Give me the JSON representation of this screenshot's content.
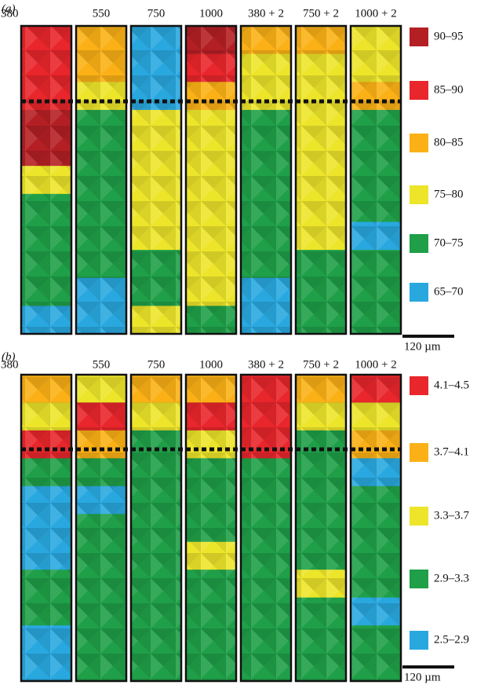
{
  "panels": [
    {
      "label": "(a)",
      "columns": [
        "380",
        "550",
        "750",
        "1000",
        "380 + 2",
        "750 + 2",
        "1000 + 2"
      ],
      "legend": [
        {
          "label": "90–95",
          "color": "#b41f24"
        },
        {
          "label": "85–90",
          "color": "#e8262b"
        },
        {
          "label": "80–85",
          "color": "#fbb116"
        },
        {
          "label": "75–80",
          "color": "#ede52a"
        },
        {
          "label": "70–75",
          "color": "#1f9f48"
        },
        {
          "label": "65–70",
          "color": "#29a8e0"
        }
      ],
      "scale_bar": "120 µm"
    },
    {
      "label": "(b)",
      "columns": [
        "380",
        "550",
        "750",
        "1000",
        "380 + 2",
        "750 + 2",
        "1000 + 2"
      ],
      "legend": [
        {
          "label": "4.1–4.5",
          "color": "#e8262b"
        },
        {
          "label": "3.7–4.1",
          "color": "#fbb116"
        },
        {
          "label": "3.3–3.7",
          "color": "#ede52a"
        },
        {
          "label": "2.9–3.3",
          "color": "#1f9f48"
        },
        {
          "label": "2.5–2.9",
          "color": "#29a8e0"
        }
      ],
      "scale_bar": "120 µm"
    }
  ]
}
